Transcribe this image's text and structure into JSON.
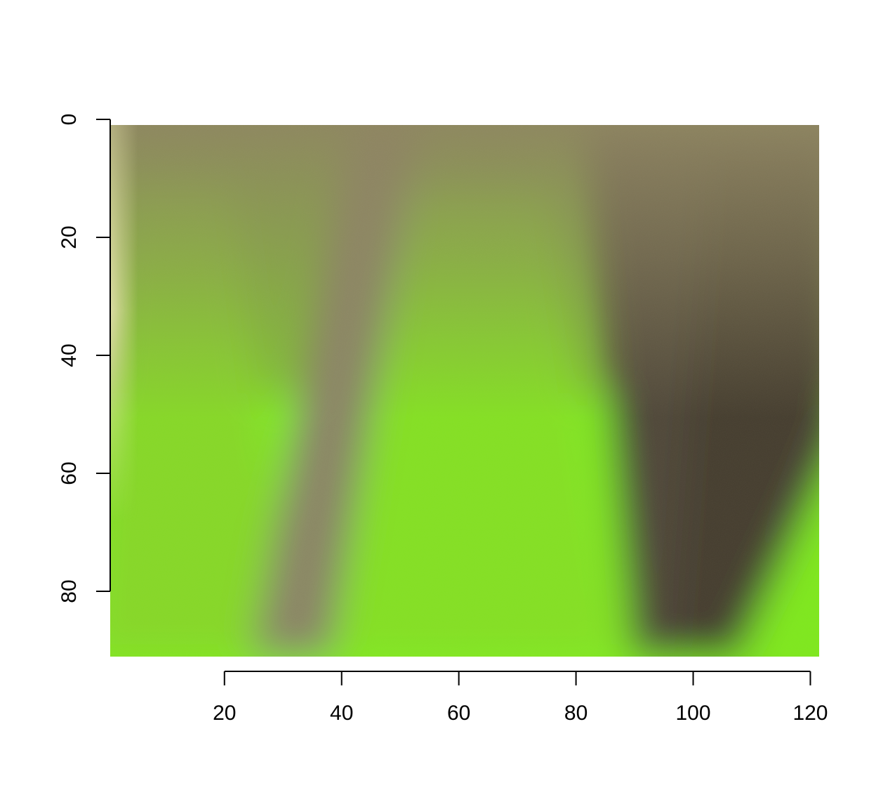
{
  "image": {
    "subject": "blurred photograph of green leaves with brown-gray diagonal stripes",
    "colors": {
      "bright_green": "#80F01A",
      "olive_green": "#8AA03A",
      "muted_tan": "#8E8460",
      "dark_brown": "#4E4636",
      "pale_edge": "#D8D6A0"
    }
  },
  "x_axis": {
    "range": [
      1,
      121
    ],
    "ticks": [
      20,
      40,
      60,
      80,
      100,
      120
    ],
    "tick_labels": [
      "20",
      "40",
      "60",
      "80",
      "100",
      "120"
    ]
  },
  "y_axis": {
    "range": [
      1,
      91
    ],
    "reversed": true,
    "ticks": [
      0,
      20,
      40,
      60,
      80
    ],
    "tick_labels": [
      "0",
      "20",
      "40",
      "60",
      "80"
    ]
  }
}
